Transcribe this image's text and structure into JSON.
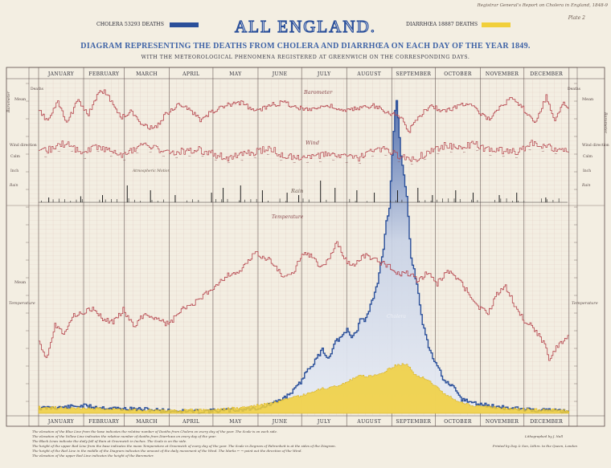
{
  "header": {
    "report_ref": "Registrar General's Report on Cholera in England, 1848-9",
    "plate": "Plate 2",
    "title": "ALL ENGLAND.",
    "subtitle": "DIAGRAM REPRESENTING THE DEATHS FROM CHOLERA AND DIARRHŒA ON EACH DAY OF THE YEAR 1849.",
    "subsubtitle": "WITH THE METEOROLOGICAL PHENOMENA REGISTERED AT GREENWICH ON THE CORRESPONDING DAYS."
  },
  "legend": {
    "cholera": "CHOLERA 53293 DEATHS",
    "diarrhoea": "DIARRHŒA 18887 DEATHS",
    "cholera_color": "#2a4f9a",
    "diarrhoea_color": "#f1cf3a"
  },
  "colors": {
    "barometer": "#b4414a",
    "temperature": "#b4414a",
    "wind": "#b4414a",
    "rain": "#1e1e1e",
    "cholera_line": "#2a4f9a",
    "cholera_fill": "#c8d2e6",
    "diarrhoea_fill": "#f1cf3a",
    "grid": "#c8a6a0",
    "paper": "#f3eee2"
  },
  "labels": {
    "barometer": "Barometer",
    "wind": "Wind",
    "rain": "Rain",
    "temperature": "Temperature",
    "cholera": "Cholera",
    "mean_barometer": "Mean",
    "mean_temperature": "Mean",
    "left_temperature": "Temperature",
    "right_temperature": "Temperature",
    "left_barometer": "Barometer",
    "right_barometer": "Barometer",
    "calm": "Calm",
    "wind_direction": "Wind direction",
    "north": "N",
    "south": "S",
    "inch": "Inch",
    "rain_unit": "Rain",
    "deaths": "Deaths",
    "atmospheric": "Atmospheric Motion"
  },
  "notes": [
    "The elevation of the Blue Line from the base indicates the relative number of Deaths from Cholera on every day of the year. The Scale is on each side.",
    "The elevation of the Yellow Line indicates the relative number of deaths from Diarrhœa on every day of the year.",
    "The Black Lines indicate the daily fall of Rain at Greenwich in Inches. The Scale is on the side.",
    "The height of the upper Red Line from the base indicates the mean Temperature at Greenwich of every day of the year. The Scale in Degrees of Fahrenheit is at the sides of the Diagram.",
    "The height of the Red Line in the middle of the Diagram indicates the amount of the daily movement of the Wind. The Marks ← → point out the direction of the Wind.",
    "The elevation of the upper Red Line indicates the height of the Barometer."
  ],
  "imprint": {
    "line1": "Lithographed by J. Nall",
    "line2": "Printed by Day & Son, Lithrs. to the Queen, London"
  },
  "chart_data": {
    "type": "line",
    "title": "ALL ENGLAND.",
    "x": {
      "type": "day_of_year",
      "year": 1849,
      "range": [
        1,
        365
      ]
    },
    "months": [
      "JANUARY",
      "FEBRUARY",
      "MARCH",
      "APRIL",
      "MAY",
      "JUNE",
      "JULY",
      "AUGUST",
      "SEPTEMBER",
      "OCTOBER",
      "NOVEMBER",
      "DECEMBER"
    ],
    "grid": true,
    "series": [
      {
        "name": "CHOLERA 53293 DEATHS",
        "kind": "area",
        "points": [
          [
            1,
            8
          ],
          [
            10,
            9
          ],
          [
            20,
            10
          ],
          [
            31,
            12
          ],
          [
            45,
            9
          ],
          [
            59,
            7
          ],
          [
            75,
            6
          ],
          [
            90,
            4
          ],
          [
            105,
            3
          ],
          [
            121,
            4
          ],
          [
            135,
            5
          ],
          [
            151,
            8
          ],
          [
            158,
            12
          ],
          [
            165,
            18
          ],
          [
            172,
            28
          ],
          [
            178,
            40
          ],
          [
            182,
            52
          ],
          [
            186,
            70
          ],
          [
            190,
            78
          ],
          [
            196,
            100
          ],
          [
            200,
            85
          ],
          [
            205,
            112
          ],
          [
            210,
            120
          ],
          [
            213,
            130
          ],
          [
            216,
            118
          ],
          [
            220,
            130
          ],
          [
            222,
            150
          ],
          [
            225,
            145
          ],
          [
            228,
            160
          ],
          [
            231,
            182
          ],
          [
            234,
            200
          ],
          [
            236,
            232
          ],
          [
            238,
            255
          ],
          [
            240,
            300
          ],
          [
            242,
            320
          ],
          [
            244,
            405
          ],
          [
            245,
            440
          ],
          [
            246,
            470
          ],
          [
            247,
            490
          ],
          [
            248,
            462
          ],
          [
            250,
            400
          ],
          [
            252,
            372
          ],
          [
            254,
            335
          ],
          [
            257,
            245
          ],
          [
            261,
            200
          ],
          [
            265,
            140
          ],
          [
            270,
            95
          ],
          [
            275,
            75
          ],
          [
            280,
            50
          ],
          [
            286,
            40
          ],
          [
            292,
            22
          ],
          [
            300,
            16
          ],
          [
            310,
            12
          ],
          [
            320,
            9
          ],
          [
            330,
            7
          ],
          [
            345,
            5
          ],
          [
            365,
            4
          ]
        ]
      },
      {
        "name": "DIARRHŒA 18887 DEATHS",
        "kind": "area",
        "points": [
          [
            1,
            10
          ],
          [
            15,
            9
          ],
          [
            31,
            8
          ],
          [
            50,
            7
          ],
          [
            75,
            5
          ],
          [
            100,
            5
          ],
          [
            121,
            6
          ],
          [
            140,
            9
          ],
          [
            155,
            14
          ],
          [
            165,
            18
          ],
          [
            175,
            24
          ],
          [
            185,
            30
          ],
          [
            195,
            38
          ],
          [
            205,
            42
          ],
          [
            212,
            48
          ],
          [
            220,
            58
          ],
          [
            228,
            58
          ],
          [
            236,
            62
          ],
          [
            242,
            70
          ],
          [
            248,
            76
          ],
          [
            254,
            76
          ],
          [
            260,
            60
          ],
          [
            266,
            55
          ],
          [
            272,
            46
          ],
          [
            280,
            30
          ],
          [
            290,
            18
          ],
          [
            300,
            12
          ],
          [
            320,
            8
          ],
          [
            340,
            6
          ],
          [
            365,
            5
          ]
        ]
      },
      {
        "name": "Barometer",
        "unit": "in",
        "kind": "line",
        "ylim": [
          28.6,
          30.6
        ],
        "points": [
          [
            1,
            29.7
          ],
          [
            7,
            29.4
          ],
          [
            14,
            30.0
          ],
          [
            20,
            29.3
          ],
          [
            28,
            30.1
          ],
          [
            35,
            29.6
          ],
          [
            42,
            30.3
          ],
          [
            46,
            30.4
          ],
          [
            52,
            29.9
          ],
          [
            58,
            29.5
          ],
          [
            64,
            29.7
          ],
          [
            72,
            29.3
          ],
          [
            80,
            29.1
          ],
          [
            88,
            29.6
          ],
          [
            96,
            29.9
          ],
          [
            104,
            29.8
          ],
          [
            112,
            29.4
          ],
          [
            120,
            29.7
          ],
          [
            130,
            29.9
          ],
          [
            140,
            30.0
          ],
          [
            150,
            29.7
          ],
          [
            160,
            29.9
          ],
          [
            170,
            30.0
          ],
          [
            180,
            29.8
          ],
          [
            190,
            29.8
          ],
          [
            200,
            29.9
          ],
          [
            210,
            29.7
          ],
          [
            220,
            29.8
          ],
          [
            230,
            29.9
          ],
          [
            240,
            29.7
          ],
          [
            250,
            29.5
          ],
          [
            255,
            29.0
          ],
          [
            262,
            29.5
          ],
          [
            270,
            29.9
          ],
          [
            280,
            29.7
          ],
          [
            290,
            29.9
          ],
          [
            298,
            30.0
          ],
          [
            305,
            29.6
          ],
          [
            312,
            29.4
          ],
          [
            318,
            29.9
          ],
          [
            326,
            30.1
          ],
          [
            334,
            29.8
          ],
          [
            342,
            29.3
          ],
          [
            350,
            30.2
          ],
          [
            356,
            29.4
          ],
          [
            362,
            30.0
          ],
          [
            365,
            29.8
          ]
        ]
      },
      {
        "name": "Temperature",
        "unit": "°F",
        "kind": "line",
        "ylim": [
          20,
          80
        ],
        "points": [
          [
            1,
            32
          ],
          [
            6,
            25
          ],
          [
            12,
            38
          ],
          [
            18,
            35
          ],
          [
            24,
            41
          ],
          [
            31,
            43
          ],
          [
            38,
            44
          ],
          [
            45,
            40
          ],
          [
            52,
            39
          ],
          [
            59,
            44
          ],
          [
            66,
            37
          ],
          [
            73,
            42
          ],
          [
            80,
            41
          ],
          [
            90,
            38
          ],
          [
            100,
            44
          ],
          [
            110,
            47
          ],
          [
            120,
            52
          ],
          [
            130,
            57
          ],
          [
            140,
            59
          ],
          [
            150,
            66
          ],
          [
            160,
            63
          ],
          [
            170,
            56
          ],
          [
            176,
            58
          ],
          [
            182,
            66
          ],
          [
            188,
            65
          ],
          [
            194,
            60
          ],
          [
            200,
            63
          ],
          [
            206,
            70
          ],
          [
            212,
            63
          ],
          [
            218,
            61
          ],
          [
            224,
            65
          ],
          [
            230,
            64
          ],
          [
            236,
            62
          ],
          [
            242,
            61
          ],
          [
            248,
            58
          ],
          [
            255,
            58
          ],
          [
            262,
            55
          ],
          [
            268,
            58
          ],
          [
            275,
            54
          ],
          [
            282,
            59
          ],
          [
            290,
            55
          ],
          [
            297,
            50
          ],
          [
            303,
            45
          ],
          [
            310,
            42
          ],
          [
            316,
            50
          ],
          [
            322,
            53
          ],
          [
            328,
            46
          ],
          [
            334,
            40
          ],
          [
            340,
            38
          ],
          [
            348,
            31
          ],
          [
            352,
            25
          ],
          [
            358,
            30
          ],
          [
            365,
            33
          ]
        ]
      },
      {
        "name": "Wind",
        "kind": "line",
        "unit": "daily movement",
        "points": [
          [
            1,
            180
          ],
          [
            10,
            220
          ],
          [
            20,
            260
          ],
          [
            31,
            180
          ],
          [
            40,
            240
          ],
          [
            50,
            200
          ],
          [
            60,
            170
          ],
          [
            70,
            240
          ],
          [
            80,
            230
          ],
          [
            90,
            180
          ],
          [
            100,
            200
          ],
          [
            110,
            210
          ],
          [
            120,
            180
          ],
          [
            130,
            150
          ],
          [
            140,
            170
          ],
          [
            150,
            190
          ],
          [
            160,
            220
          ],
          [
            170,
            150
          ],
          [
            180,
            160
          ],
          [
            190,
            150
          ],
          [
            200,
            180
          ],
          [
            210,
            160
          ],
          [
            220,
            140
          ],
          [
            230,
            200
          ],
          [
            240,
            210
          ],
          [
            250,
            150
          ],
          [
            260,
            140
          ],
          [
            270,
            200
          ],
          [
            280,
            240
          ],
          [
            290,
            220
          ],
          [
            300,
            250
          ],
          [
            310,
            210
          ],
          [
            320,
            200
          ],
          [
            330,
            190
          ],
          [
            340,
            260
          ],
          [
            350,
            230
          ],
          [
            365,
            210
          ]
        ]
      },
      {
        "name": "Rain",
        "unit": "inch",
        "kind": "bar",
        "points": [
          [
            8,
            0.2
          ],
          [
            30,
            0.25
          ],
          [
            45,
            0.3
          ],
          [
            62,
            0.7
          ],
          [
            78,
            0.5
          ],
          [
            95,
            0.3
          ],
          [
            120,
            0.4
          ],
          [
            128,
            0.6
          ],
          [
            140,
            0.7
          ],
          [
            155,
            0.5
          ],
          [
            172,
            0.4
          ],
          [
            180,
            0.3
          ],
          [
            195,
            0.9
          ],
          [
            205,
            0.6
          ],
          [
            220,
            0.5
          ],
          [
            232,
            0.4
          ],
          [
            248,
            0.5
          ],
          [
            262,
            0.6
          ],
          [
            272,
            0.3
          ],
          [
            288,
            0.5
          ],
          [
            300,
            0.4
          ],
          [
            318,
            0.3
          ],
          [
            330,
            0.4
          ],
          [
            350,
            0.2
          ]
        ]
      }
    ]
  }
}
